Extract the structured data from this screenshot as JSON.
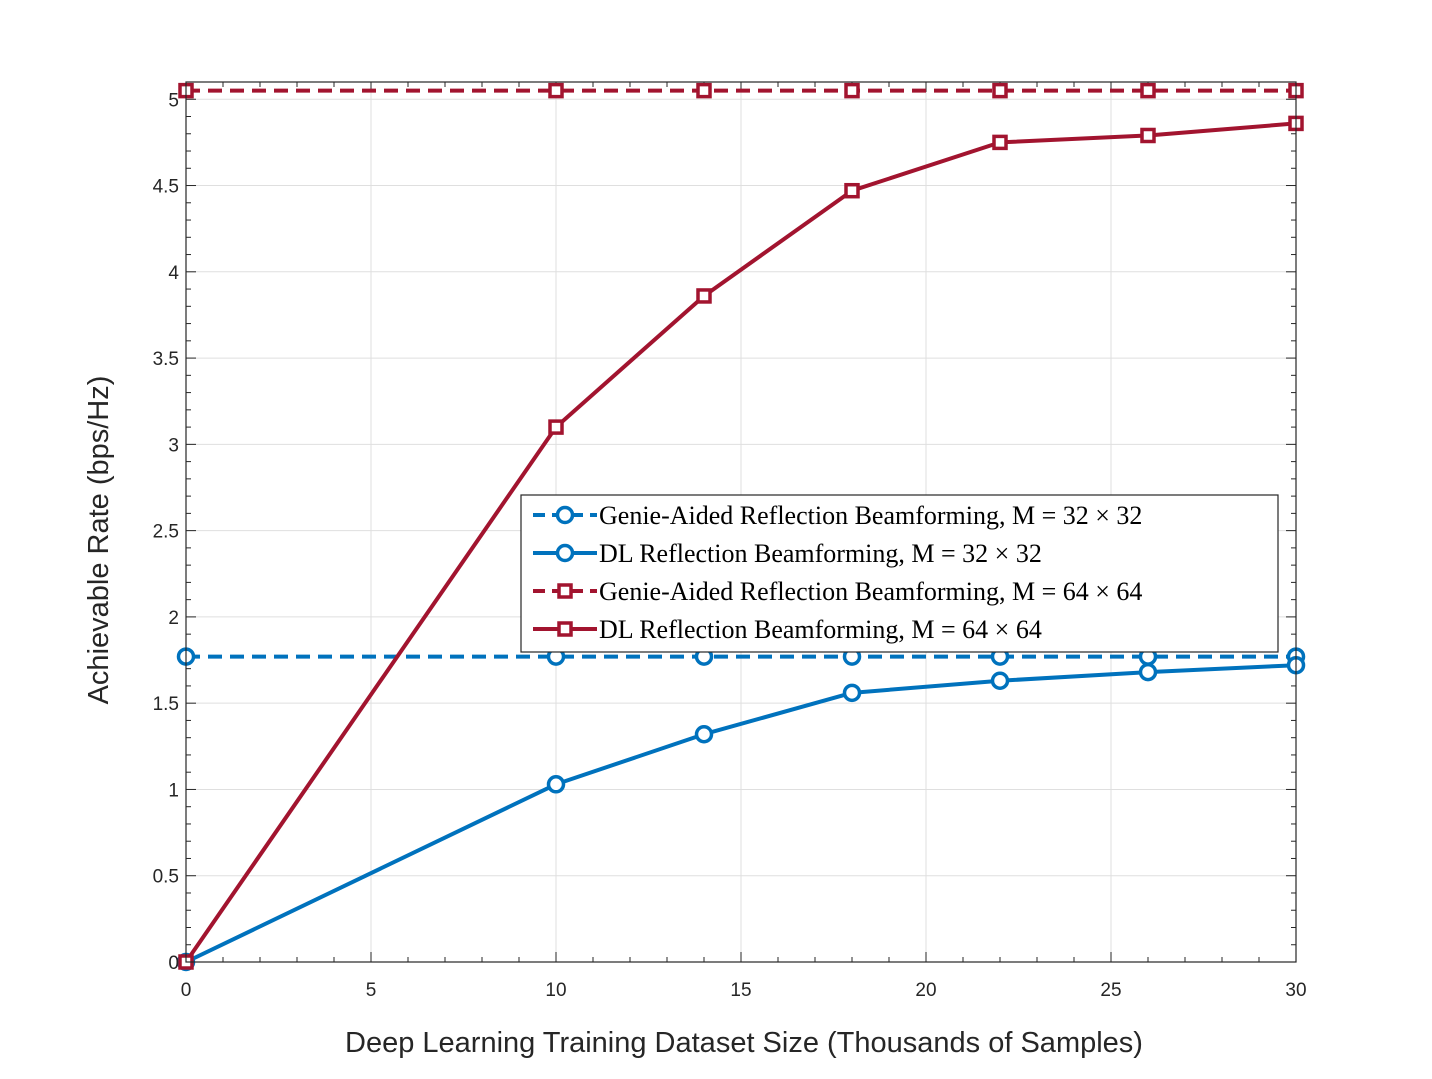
{
  "chart_data": {
    "type": "line",
    "xlabel": "Deep Learning Training Dataset Size (Thousands of Samples)",
    "ylabel": "Achievable Rate (bps/Hz)",
    "xlim": [
      0,
      30
    ],
    "ylim": [
      0,
      5.1
    ],
    "xticks": [
      "0",
      "5",
      "10",
      "15",
      "20",
      "25",
      "30"
    ],
    "yticks": [
      "0",
      "0.5",
      "1",
      "1.5",
      "2",
      "2.5",
      "3",
      "3.5",
      "4",
      "4.5",
      "5"
    ],
    "grid": true,
    "legend_position": "center-right",
    "series": [
      {
        "name": "Genie-Aided Reflection Beamforming, M = 32 × 32",
        "color": "#0072BD",
        "line_style": "dashed",
        "marker": "circle",
        "x": [
          0,
          10,
          14,
          18,
          22,
          26,
          30
        ],
        "y": [
          1.77,
          1.77,
          1.77,
          1.77,
          1.77,
          1.77,
          1.77
        ]
      },
      {
        "name": "DL Reflection Beamforming, M = 32 × 32",
        "color": "#0072BD",
        "line_style": "solid",
        "marker": "circle",
        "x": [
          0,
          10,
          14,
          18,
          22,
          26,
          30
        ],
        "y": [
          0,
          1.03,
          1.32,
          1.56,
          1.63,
          1.68,
          1.72
        ]
      },
      {
        "name": "Genie-Aided Reflection Beamforming, M = 64 × 64",
        "color": "#A2142F",
        "line_style": "dashed",
        "marker": "square",
        "x": [
          0,
          10,
          14,
          18,
          22,
          26,
          30
        ],
        "y": [
          5.05,
          5.05,
          5.05,
          5.05,
          5.05,
          5.05,
          5.05
        ]
      },
      {
        "name": "DL Reflection Beamforming, M = 64 × 64",
        "color": "#A2142F",
        "line_style": "solid",
        "marker": "square",
        "x": [
          0,
          10,
          14,
          18,
          22,
          26,
          30
        ],
        "y": [
          0,
          3.1,
          3.86,
          4.47,
          4.75,
          4.79,
          4.86
        ]
      }
    ]
  }
}
